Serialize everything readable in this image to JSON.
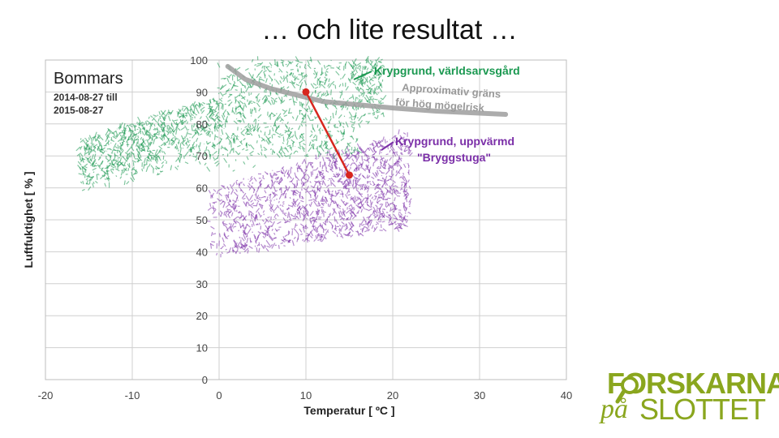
{
  "slide": {
    "title": "… och lite resultat …"
  },
  "chart_data": {
    "type": "scatter",
    "title": "Bommars",
    "subtitle_lines": [
      "2014-08-27 till",
      "2015-08-27"
    ],
    "xlabel": "Temperatur   [ ºC ]",
    "ylabel": "Luftfuktighet   [ % ]",
    "xlim": [
      -20,
      40
    ],
    "ylim": [
      0,
      100
    ],
    "x_ticks": [
      "-20",
      "-10",
      "0",
      "10",
      "20",
      "30",
      "40"
    ],
    "y_ticks": [
      "0",
      "10",
      "20",
      "30",
      "40",
      "50",
      "60",
      "70",
      "80",
      "90",
      "100"
    ],
    "grid": true,
    "series": [
      {
        "name": "Krypgrund, världsarvsgård",
        "label_lines": [
          "Krypgrund, världsarvsgård"
        ],
        "color": "#1a9850",
        "x_range": [
          -16,
          19
        ],
        "y_range": [
          58,
          100
        ],
        "center": [
          10,
          90
        ]
      },
      {
        "name": "Krypgrund, uppvärmd \"Bryggstuga\"",
        "label_lines": [
          "Krypgrund, uppvärmd",
          "\"Bryggstuga\""
        ],
        "color": "#7b2fa8",
        "x_range": [
          -1,
          22
        ],
        "y_range": [
          38,
          78
        ],
        "center": [
          15,
          64
        ]
      }
    ],
    "annotations": [
      {
        "text_lines": [
          "Approximativ gräns",
          "för hög mögelrisk"
        ],
        "color": "#999999",
        "curve": [
          [
            1,
            98
          ],
          [
            3,
            94
          ],
          [
            6,
            91
          ],
          [
            9,
            89
          ],
          [
            12,
            87
          ],
          [
            16,
            86
          ],
          [
            20,
            85
          ],
          [
            25,
            84
          ],
          [
            33,
            83
          ]
        ]
      }
    ],
    "arrow": {
      "from": [
        10,
        90
      ],
      "to": [
        15,
        64
      ],
      "color": "#d7261e"
    }
  },
  "logo": {
    "top": "FORSKARNA",
    "pa": "på",
    "bottom": "SLOTTET",
    "color": "#8aa61e"
  }
}
